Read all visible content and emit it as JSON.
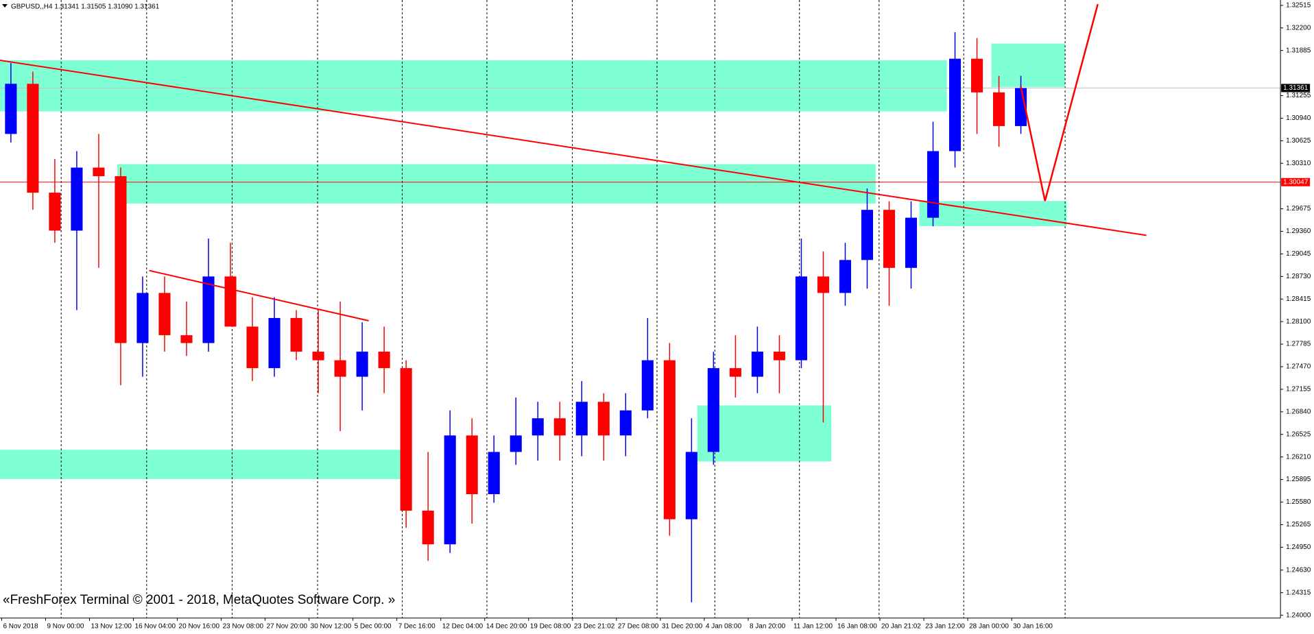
{
  "chart_data": {
    "type": "candlestick",
    "title": "GBPUSD,,H4  1.31341 1.31505 1.31090 1.31361",
    "footer": "«FreshForex Terminal © 2001 - 2018, MetaQuotes Software Corp. »",
    "up_color": "#0000ff",
    "down_color": "#ff0000",
    "x_labels": [
      "6 Nov 2018",
      "9 Nov 00:00",
      "13 Nov 12:00",
      "16 Nov 04:00",
      "20 Nov 16:00",
      "23 Nov 08:00",
      "27 Nov 20:00",
      "30 Nov 12:00",
      "5 Dec 00:00",
      "7 Dec 16:00",
      "12 Dec 04:00",
      "14 Dec 20:00",
      "19 Dec 08:00",
      "23 Dec 21:02",
      "27 Dec 08:00",
      "31 Dec 20:00",
      "4 Jan 08:00",
      "8 Jan 20:00",
      "11 Jan 12:00",
      "16 Jan 08:00",
      "20 Jan 21:02",
      "23 Jan 12:00",
      "28 Jan 00:00",
      "30 Jan 16:00"
    ],
    "open": [
      1.3072,
      1.3142,
      1.299,
      1.2937,
      1.3025,
      1.3013,
      1.278,
      1.285,
      1.2791,
      1.278,
      1.2873,
      1.2803,
      1.2745,
      1.2815,
      1.2768,
      1.2756,
      1.2733,
      1.2768,
      1.2745,
      1.2546,
      1.2499,
      1.2651,
      1.2569,
      1.2628,
      1.2651,
      1.2675,
      1.2651,
      1.2698,
      1.2651,
      1.2686,
      1.2756,
      1.2534,
      1.2628,
      1.2745,
      1.2733,
      1.2768,
      1.2756,
      1.2873,
      1.285,
      1.2896,
      1.2966,
      1.2885,
      1.2955,
      1.3048,
      1.3177,
      1.313,
      1.3083
    ],
    "high": [
      1.3171,
      1.3159,
      1.3037,
      1.3048,
      1.3072,
      1.3025,
      1.2873,
      1.2873,
      1.2838,
      1.2926,
      1.292,
      1.2844,
      1.2844,
      1.2826,
      1.2826,
      1.2838,
      1.2809,
      1.2803,
      1.2756,
      1.2628,
      1.2686,
      1.2675,
      1.2651,
      1.2704,
      1.2698,
      1.2698,
      1.2727,
      1.271,
      1.271,
      1.2815,
      1.278,
      1.2675,
      1.2768,
      1.2791,
      1.2803,
      1.2791,
      1.2926,
      1.2908,
      1.292,
      1.2996,
      1.2978,
      1.2978,
      1.3089,
      1.3214,
      1.3206,
      1.3153,
      1.3153
    ],
    "low": [
      1.306,
      1.2966,
      1.292,
      1.2826,
      1.2885,
      1.2721,
      1.2733,
      1.2768,
      1.2762,
      1.2768,
      1.2803,
      1.2727,
      1.2733,
      1.2756,
      1.271,
      1.2657,
      1.2686,
      1.271,
      1.2522,
      1.2476,
      1.2487,
      1.2528,
      1.2557,
      1.261,
      1.2616,
      1.2616,
      1.2622,
      1.2616,
      1.2622,
      1.2675,
      1.2511,
      1.2418,
      1.261,
      1.2704,
      1.271,
      1.271,
      1.2745,
      1.2669,
      1.2832,
      1.2856,
      1.2832,
      1.2856,
      1.2943,
      1.3025,
      1.3072,
      1.3054,
      1.3072
    ],
    "close": [
      1.3142,
      1.299,
      1.2937,
      1.3025,
      1.3013,
      1.278,
      1.285,
      1.2791,
      1.278,
      1.2873,
      1.2803,
      1.2745,
      1.2815,
      1.2768,
      1.2756,
      1.2733,
      1.2768,
      1.2745,
      1.2546,
      1.2499,
      1.2651,
      1.2569,
      1.2628,
      1.2651,
      1.2675,
      1.2651,
      1.2698,
      1.2651,
      1.2686,
      1.2756,
      1.2534,
      1.2628,
      1.2745,
      1.2733,
      1.2768,
      1.2756,
      1.2873,
      1.285,
      1.2896,
      1.2966,
      1.2885,
      1.2955,
      1.3048,
      1.3177,
      1.313,
      1.3083,
      1.3136
    ],
    "levels": [
      {
        "value": 1.31361,
        "color": "#000000",
        "line": "#c0c0c0"
      },
      {
        "value": 1.30047,
        "color": "#ff0000",
        "line": "#ff0000"
      }
    ],
    "ylim": [
      1.2396,
      1.3259
    ],
    "yticks": [
      1.32515,
      {
        "value": 1.322,
        "label": "1.32200"
      },
      1.31885,
      1.31255,
      {
        "value": 1.3094,
        "label": "1.30940"
      },
      1.30625,
      {
        "value": 1.3031,
        "label": "1.30310"
      },
      1.29675,
      {
        "value": 1.2936,
        "label": "1.29360"
      },
      1.29045,
      {
        "value": 1.2873,
        "label": "1.28730"
      },
      1.28415,
      {
        "value": 1.281,
        "label": "1.28100"
      },
      1.27785,
      {
        "value": 1.2747,
        "label": "1.27470"
      },
      1.27155,
      {
        "value": 1.2684,
        "label": "1.26840"
      },
      1.26525,
      {
        "value": 1.2621,
        "label": "1.26210"
      },
      1.25895,
      {
        "value": 1.2558,
        "label": "1.25580"
      },
      1.25265,
      {
        "value": 1.2495,
        "label": "1.24950"
      },
      {
        "value": 1.2463,
        "label": "1.24630"
      },
      1.24315,
      {
        "value": 1.24,
        "label": "1.24000"
      }
    ]
  }
}
